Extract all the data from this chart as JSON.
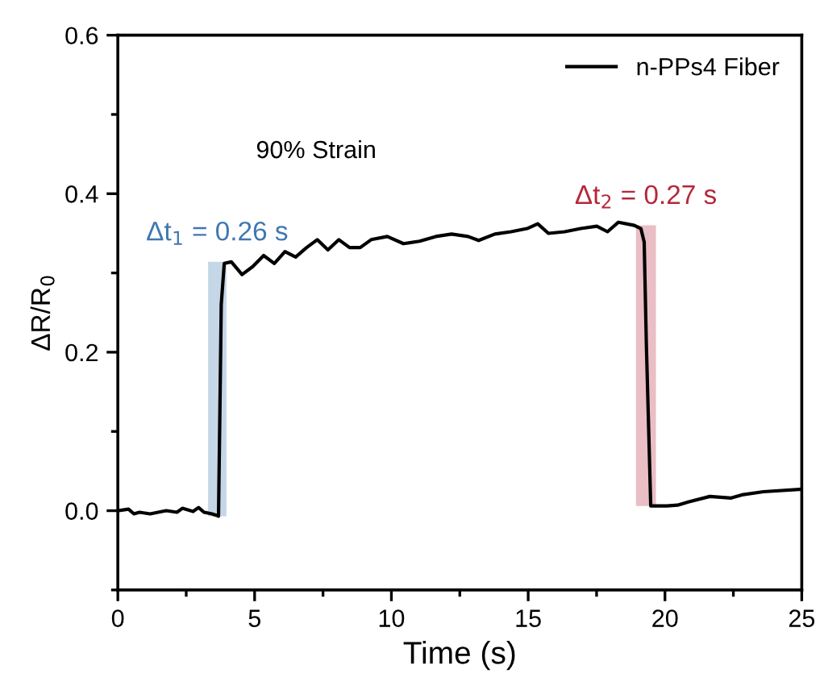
{
  "chart_data": {
    "type": "line",
    "xlabel": "Time (s)",
    "ylabel": "ΔR/R$_{0}$",
    "xlim": [
      0,
      25
    ],
    "ylim": [
      -0.1,
      0.6
    ],
    "xticks": [
      0,
      5,
      10,
      15,
      20,
      25
    ],
    "yticks": [
      {
        "value": 0,
        "label": "0.0"
      },
      0.2,
      0.4,
      0.6
    ],
    "grid": false,
    "legend": "top right",
    "marker": "none",
    "line_style": "solid",
    "annotations": [
      "90% Strain"
    ],
    "bands": [
      {
        "axis": "x",
        "from": 3.3,
        "to": 3.97,
        "label": "Δt$_{1}$ = 0.26 s",
        "color": "#3f77b0"
      },
      {
        "axis": "x",
        "from": 18.94,
        "to": 19.67,
        "label": "Δt$_{2}$ = 0.27 s",
        "color": "#b5283a"
      }
    ],
    "series": [
      {
        "name": "n-PPs4 Fiber",
        "color": "#000000",
        "x": [
          0,
          0.39,
          0.59,
          0.79,
          1.18,
          1.77,
          2.16,
          2.36,
          2.75,
          2.95,
          3.15,
          3.44,
          3.62,
          3.68,
          3.74,
          3.78,
          3.89,
          4.15,
          4.54,
          4.93,
          5.33,
          5.72,
          6.11,
          6.5,
          6.9,
          7.29,
          7.68,
          8.08,
          8.47,
          8.86,
          9.26,
          9.85,
          10.44,
          11.03,
          11.62,
          12.2,
          12.8,
          13.19,
          13.78,
          14.37,
          14.96,
          15.35,
          15.74,
          16.33,
          16.92,
          17.51,
          17.9,
          18.3,
          18.88,
          19.12,
          19.24,
          19.32,
          19.48,
          20.07,
          20.46,
          20.85,
          21.64,
          22.42,
          22.81,
          23.6,
          24.98
        ],
        "values": [
          0.0,
          0.002,
          -0.004,
          -0.002,
          -0.004,
          0.0,
          -0.002,
          0.003,
          -0.001,
          0.004,
          -0.002,
          -0.004,
          -0.006,
          -0.007,
          0.15,
          0.26,
          0.312,
          0.314,
          0.298,
          0.308,
          0.322,
          0.312,
          0.327,
          0.32,
          0.332,
          0.342,
          0.329,
          0.342,
          0.332,
          0.332,
          0.342,
          0.346,
          0.337,
          0.34,
          0.346,
          0.349,
          0.346,
          0.341,
          0.349,
          0.352,
          0.356,
          0.362,
          0.35,
          0.352,
          0.356,
          0.359,
          0.352,
          0.364,
          0.36,
          0.356,
          0.339,
          0.21,
          0.006,
          0.006,
          0.007,
          0.011,
          0.018,
          0.016,
          0.02,
          0.024,
          0.027
        ]
      }
    ]
  }
}
